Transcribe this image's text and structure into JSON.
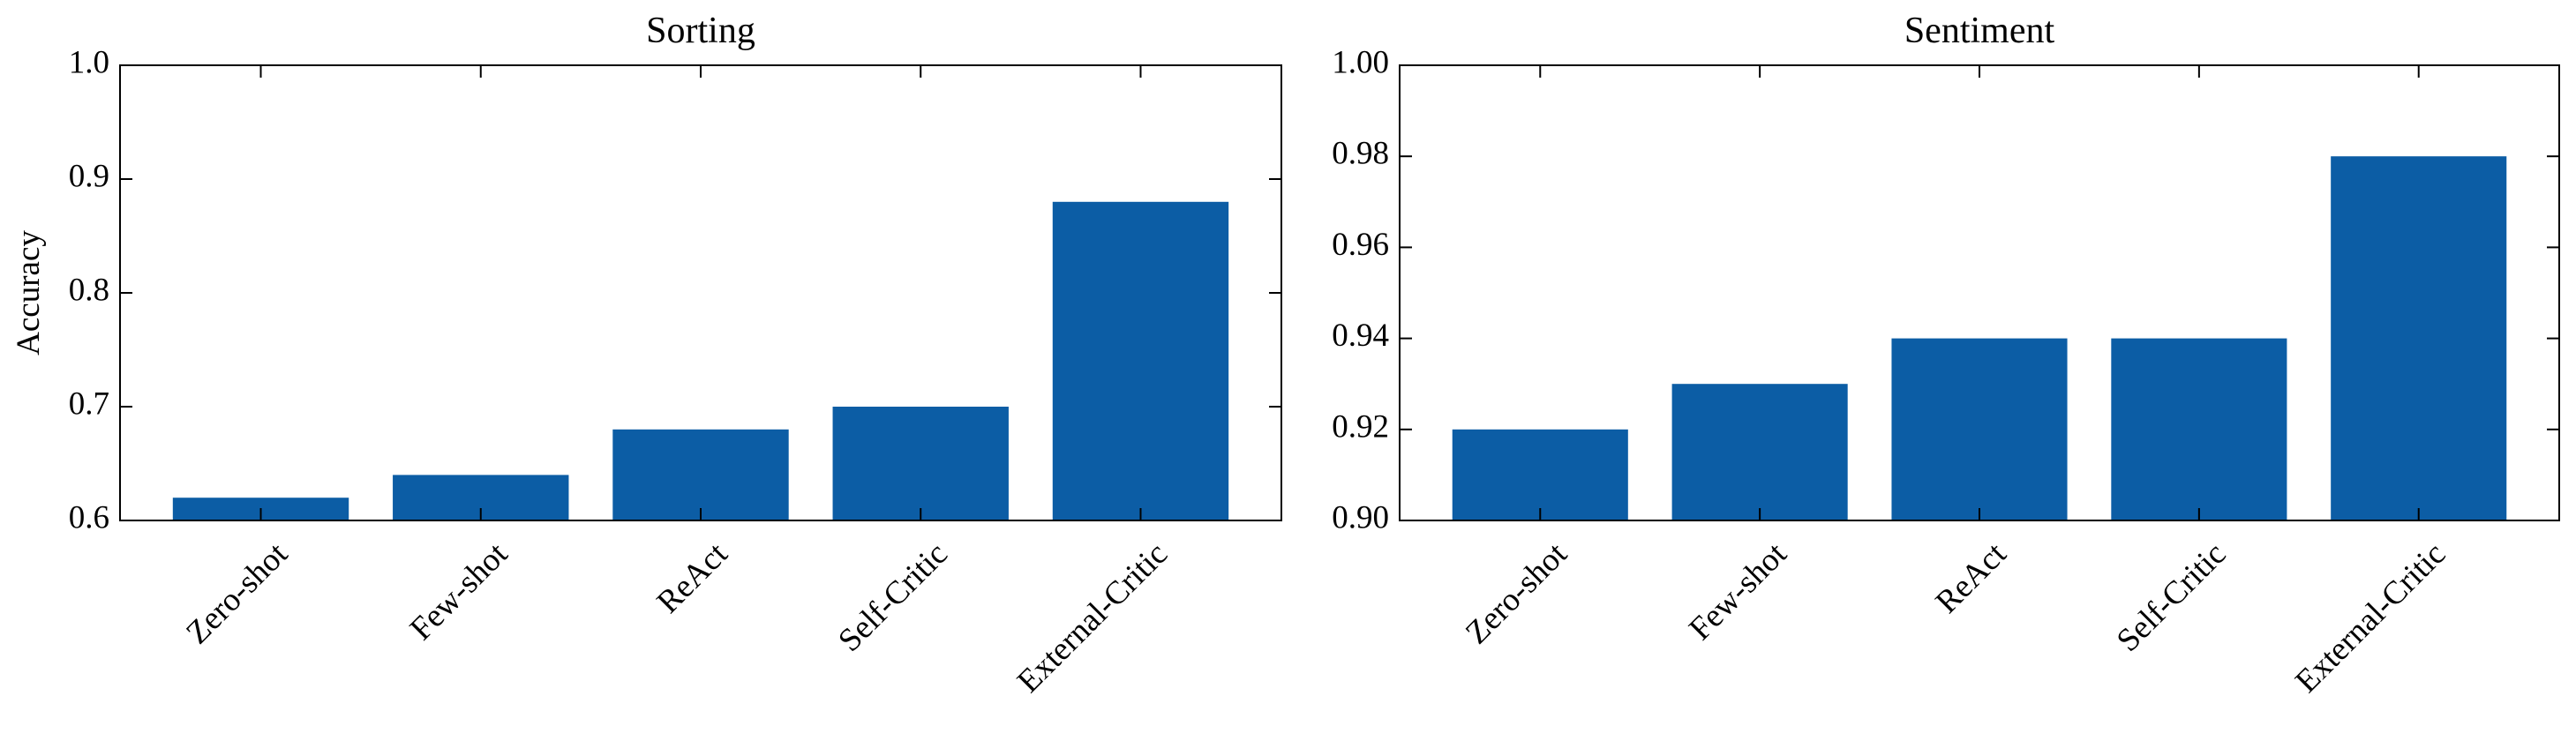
{
  "chart_data": [
    {
      "type": "bar",
      "title": "Sorting",
      "y_label": "Accuracy",
      "categories": [
        "Zero-shot",
        "Few-shot",
        "ReAct",
        "Self-Critic",
        "External-Critic"
      ],
      "values": [
        0.62,
        0.64,
        0.68,
        0.7,
        0.88
      ],
      "color": "#0c5da5",
      "ylim": [
        0.6,
        1.0
      ],
      "yticks": [
        0.6,
        0.7,
        0.8,
        0.9,
        {
          "value": 1.0,
          "label": "1.0"
        }
      ]
    },
    {
      "type": "bar",
      "title": "Sentiment",
      "categories": [
        "Zero-shot",
        "Few-shot",
        "ReAct",
        "Self-Critic",
        "External-Critic"
      ],
      "values": [
        0.92,
        0.93,
        0.94,
        0.94,
        0.98
      ],
      "color": "#0c5da5",
      "ylim": [
        0.9,
        1.0
      ],
      "yticks": [
        {
          "value": 0.9,
          "label": "0.90"
        },
        0.92,
        0.94,
        0.96,
        0.98,
        {
          "value": 1.0,
          "label": "1.00"
        }
      ]
    }
  ]
}
